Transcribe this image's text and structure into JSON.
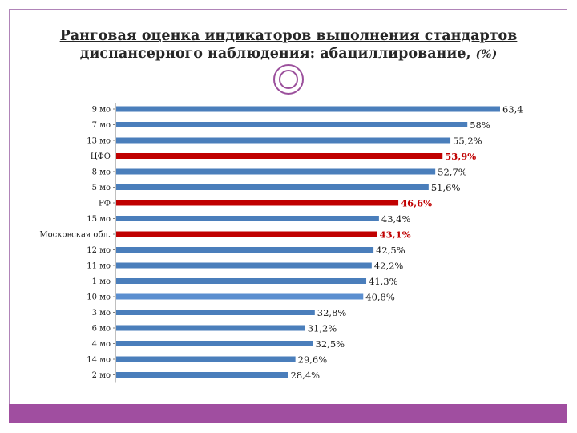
{
  "title": {
    "line1": "Ранговая оценка индикаторов выполнения стандартов",
    "line2_underlined": "диспансерного наблюдения:",
    "line2_rest": " абациллирование,",
    "unit": "(%)"
  },
  "colors": {
    "bar": "#4a7ebb",
    "highlight": "#c00000",
    "light": "#5b8fd0",
    "accent": "#a04ea0"
  },
  "chart_data": {
    "type": "bar",
    "orientation": "horizontal",
    "categories": [
      "9 мо",
      "7 мо",
      "13 мо",
      "ЦФО",
      "8 мо",
      "5 мо",
      "РФ",
      "15 мо",
      "Московская обл.",
      "12 мо",
      "11 мо",
      "1 мо",
      "10 мо",
      "3 мо",
      "6 мо",
      "4 мо",
      "14 мо",
      "2 мо"
    ],
    "values": [
      63.4,
      58,
      55.2,
      53.9,
      52.7,
      51.6,
      46.6,
      43.4,
      43.1,
      42.5,
      42.2,
      41.3,
      40.8,
      32.8,
      31.2,
      32.5,
      29.6,
      28.4
    ],
    "labels": [
      "63,4",
      "58%",
      "55,2%",
      "53,9%",
      "52,7%",
      "51,6%",
      "46,6%",
      "43,4%",
      "43,1%",
      "42,5%",
      "42,2%",
      "41,3%",
      "40,8%",
      "32,8%",
      "31,2%",
      "32,5%",
      "29,6%",
      "28,4%"
    ],
    "highlighted": [
      "ЦФО",
      "РФ",
      "Московская обл."
    ],
    "light_bars": [
      "10 мо"
    ],
    "xlim": [
      0,
      63.4
    ],
    "grid": false,
    "legend": "none"
  }
}
